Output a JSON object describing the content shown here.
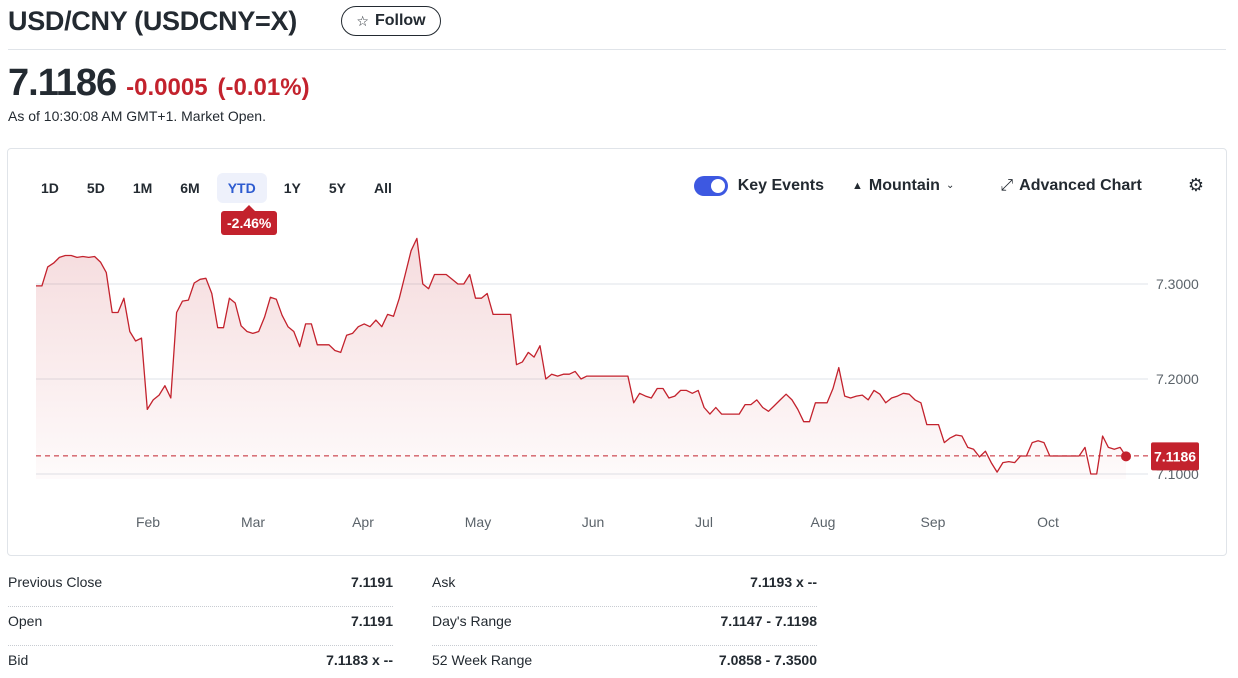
{
  "header": {
    "title": "USD/CNY (USDCNY=X)",
    "follow_label": "Follow"
  },
  "quote": {
    "price": "7.1186",
    "change": "-0.0005",
    "change_pct": "(-0.01%)",
    "as_of": "As of 10:30:08 AM GMT+1. Market Open."
  },
  "chart_controls": {
    "ranges": [
      "1D",
      "5D",
      "1M",
      "6M",
      "YTD",
      "1Y",
      "5Y",
      "All"
    ],
    "active_range": "YTD",
    "ytd_change": "-2.46%",
    "key_events_label": "Key Events",
    "key_events_on": true,
    "chart_type_label": "Mountain",
    "advanced_chart_label": "Advanced Chart"
  },
  "colors": {
    "line": "#c3222d",
    "accent": "#3d58e1",
    "negative": "#c3222d"
  },
  "chart_data": {
    "type": "area",
    "title": "",
    "xlabel": "",
    "ylabel": "",
    "x_ticks": [
      "Feb",
      "Mar",
      "Apr",
      "May",
      "Jun",
      "Jul",
      "Aug",
      "Sep",
      "Oct"
    ],
    "y_ticks": [
      "7.3000",
      "7.2000",
      "7.1000"
    ],
    "ylim": [
      7.08,
      7.36
    ],
    "grid": true,
    "current_value_label": "7.1186",
    "reference_line": 7.1191,
    "series": [
      {
        "values": [
          7.298,
          7.298,
          7.318,
          7.322,
          7.328,
          7.33,
          7.33,
          7.328,
          7.329,
          7.328,
          7.329,
          7.323,
          7.312,
          7.27,
          7.27,
          7.285,
          7.25,
          7.24,
          7.243,
          7.168,
          7.178,
          7.183,
          7.193,
          7.18,
          7.27,
          7.282,
          7.283,
          7.301,
          7.305,
          7.306,
          7.29,
          7.254,
          7.254,
          7.285,
          7.28,
          7.256,
          7.25,
          7.248,
          7.25,
          7.265,
          7.286,
          7.284,
          7.267,
          7.255,
          7.25,
          7.234,
          7.258,
          7.258,
          7.236,
          7.236,
          7.236,
          7.23,
          7.228,
          7.246,
          7.248,
          7.255,
          7.258,
          7.255,
          7.262,
          7.255,
          7.268,
          7.266,
          7.285,
          7.31,
          7.335,
          7.348,
          7.3,
          7.295,
          7.31,
          7.31,
          7.31,
          7.305,
          7.3,
          7.3,
          7.31,
          7.285,
          7.285,
          7.29,
          7.268,
          7.268,
          7.268,
          7.268,
          7.215,
          7.218,
          7.228,
          7.223,
          7.235,
          7.2,
          7.205,
          7.203,
          7.205,
          7.205,
          7.208,
          7.2,
          7.203,
          7.203,
          7.203,
          7.203,
          7.203,
          7.203,
          7.203,
          7.203,
          7.175,
          7.185,
          7.182,
          7.18,
          7.19,
          7.19,
          7.18,
          7.182,
          7.188,
          7.188,
          7.185,
          7.188,
          7.17,
          7.163,
          7.17,
          7.163,
          7.163,
          7.163,
          7.163,
          7.173,
          7.173,
          7.178,
          7.17,
          7.166,
          7.172,
          7.178,
          7.184,
          7.178,
          7.168,
          7.155,
          7.155,
          7.175,
          7.175,
          7.175,
          7.19,
          7.212,
          7.182,
          7.18,
          7.182,
          7.183,
          7.178,
          7.188,
          7.184,
          7.175,
          7.18,
          7.182,
          7.185,
          7.184,
          7.178,
          7.175,
          7.152,
          7.152,
          7.152,
          7.133,
          7.138,
          7.141,
          7.14,
          7.128,
          7.126,
          7.118,
          7.124,
          7.112,
          7.102,
          7.112,
          7.113,
          7.112,
          7.119,
          7.119,
          7.133,
          7.135,
          7.133,
          7.119,
          7.119,
          7.119,
          7.119,
          7.119,
          7.119,
          7.128,
          7.1,
          7.1,
          7.14,
          7.128,
          7.126,
          7.128,
          7.1186
        ]
      }
    ]
  },
  "stats": {
    "left": [
      {
        "label": "Previous Close",
        "value": "7.1191"
      },
      {
        "label": "Open",
        "value": "7.1191"
      },
      {
        "label": "Bid",
        "value": "7.1183 x --"
      }
    ],
    "right": [
      {
        "label": "Ask",
        "value": "7.1193 x --"
      },
      {
        "label": "Day's Range",
        "value": "7.1147 - 7.1198"
      },
      {
        "label": "52 Week Range",
        "value": "7.0858 - 7.3500"
      }
    ]
  }
}
